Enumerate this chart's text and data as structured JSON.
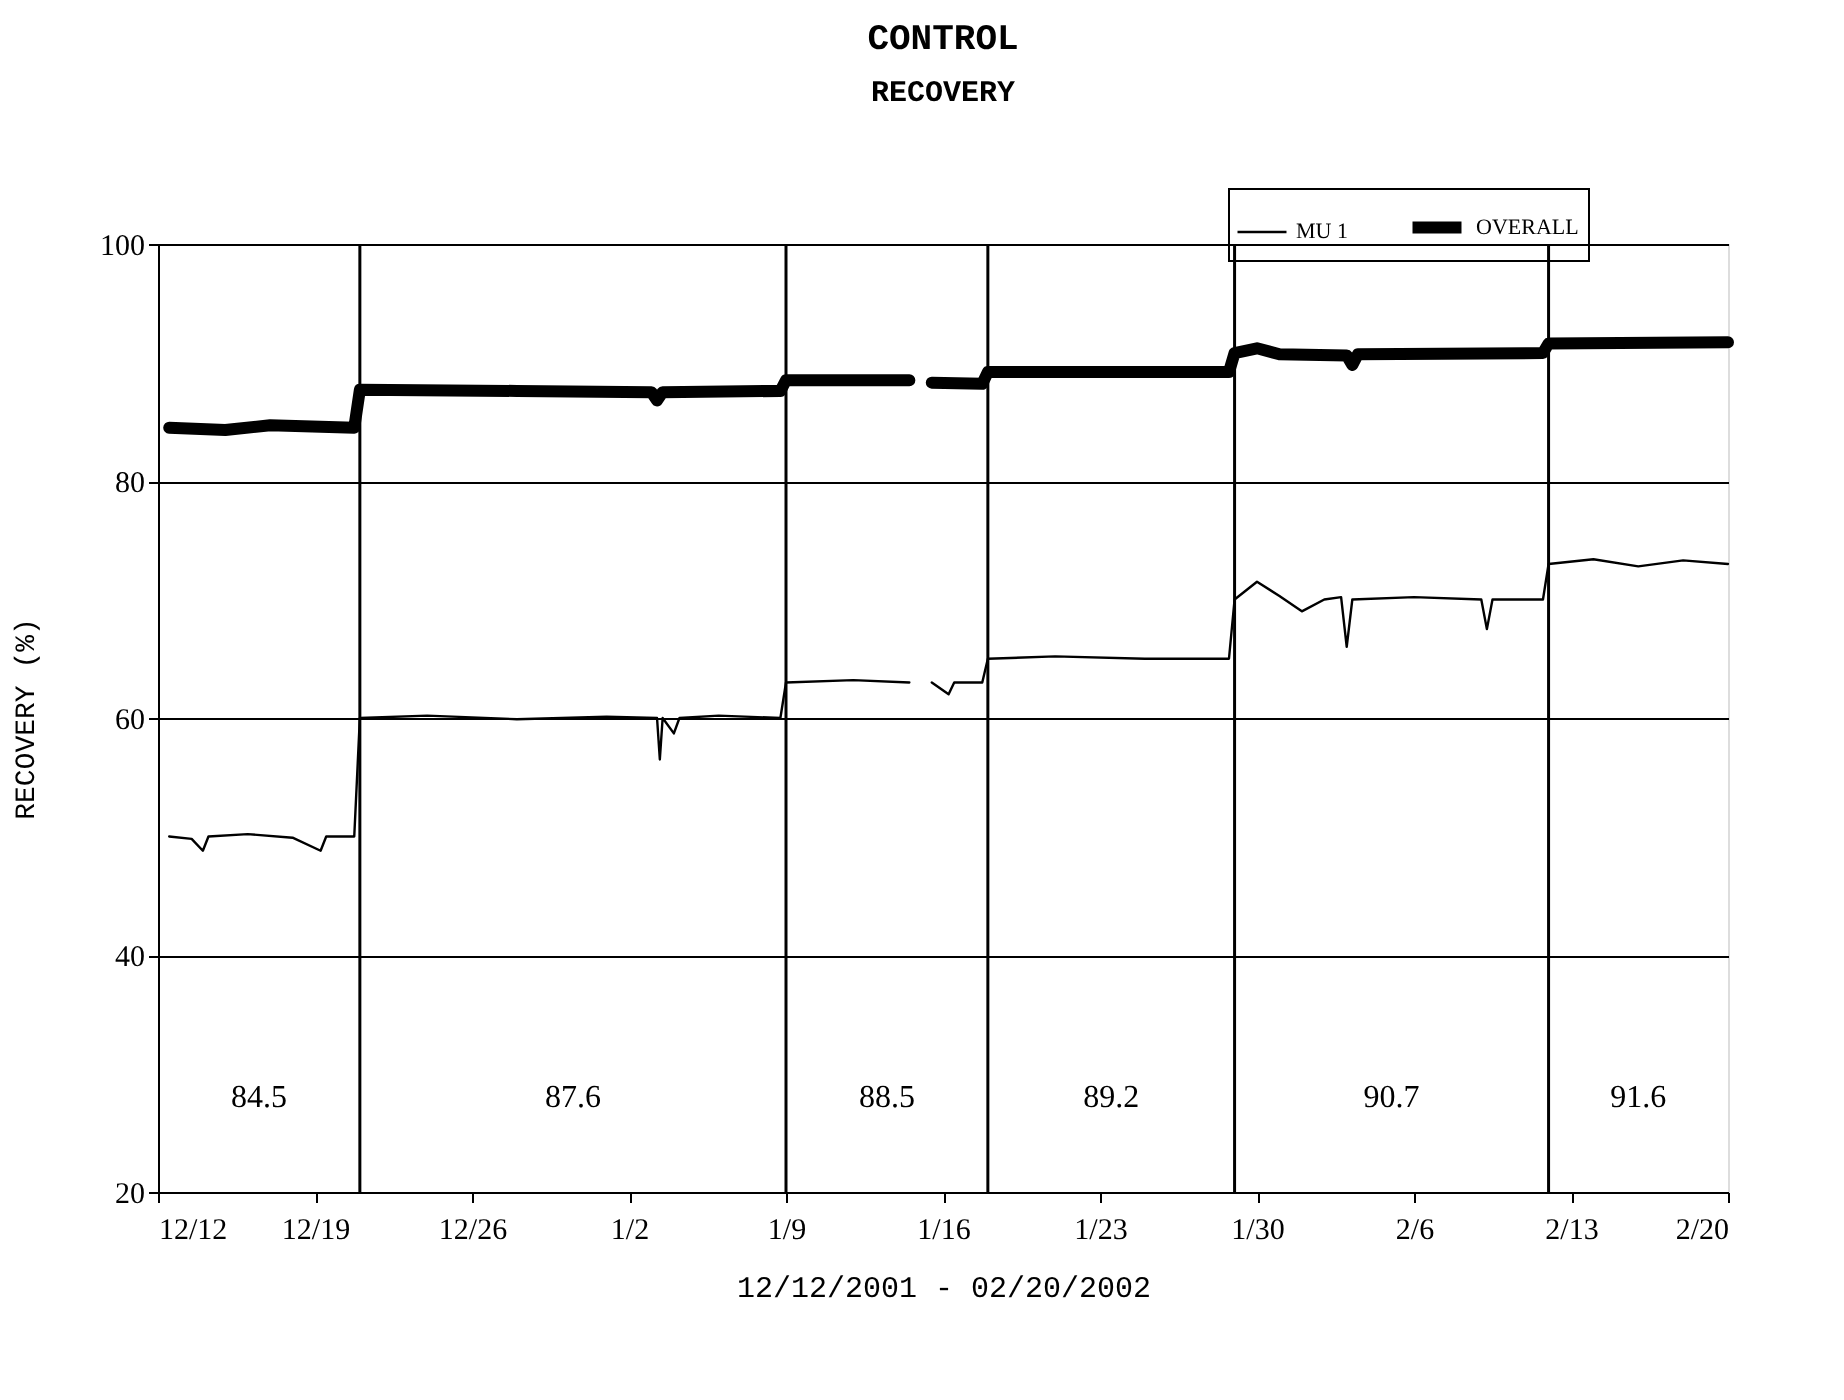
{
  "chart_data": {
    "type": "line",
    "title": "CONTROL",
    "subtitle": "RECOVERY",
    "xlabel": "12/12/2001 - 02/20/2002",
    "ylabel": "RECOVERY (%)",
    "xlim": [
      "2001-12-12",
      "2002-02-20"
    ],
    "xticks": [
      {
        "value": "2001-12-12",
        "label": "12/12"
      },
      {
        "value": "2001-12-19",
        "label": "12/19"
      },
      {
        "value": "2001-12-26",
        "label": "12/26"
      },
      {
        "value": "2002-01-02",
        "label": "1/2"
      },
      {
        "value": "2002-01-09",
        "label": "1/9"
      },
      {
        "value": "2002-01-16",
        "label": "1/16"
      },
      {
        "value": "2002-01-23",
        "label": "1/23"
      },
      {
        "value": "2002-01-30",
        "label": "1/30"
      },
      {
        "value": "2002-02-06",
        "label": "2/6"
      },
      {
        "value": "2002-02-13",
        "label": "2/13"
      },
      {
        "value": "2002-02-20",
        "label": "2/20"
      }
    ],
    "ylim": [
      20,
      100
    ],
    "yticks": [
      20,
      40,
      60,
      80,
      100
    ],
    "grid": "y",
    "legend": "top right",
    "marker": "none",
    "line_style": "solid",
    "ref_lines": [
      {
        "axis": "x",
        "value": "2001-12-21",
        "color": "#000000"
      },
      {
        "axis": "x",
        "value": "2002-01-09",
        "color": "#000000"
      },
      {
        "axis": "x",
        "value": "2002-01-18",
        "color": "#000000"
      },
      {
        "axis": "x",
        "value": "2002-01-29",
        "color": "#000000"
      },
      {
        "axis": "x",
        "value": "2002-02-12",
        "color": "#000000"
      }
    ],
    "annotations": [
      "84.5",
      "87.6",
      "88.5",
      "89.2",
      "90.7",
      "91.6"
    ],
    "series": [
      {
        "name": "MU 1",
        "color": "#000000",
        "x": [
          "2001-12-12T12:00",
          "2001-12-13T12:00",
          "2001-12-14T00:00",
          "2001-12-14T06:00",
          "2001-12-16T00:00",
          "2001-12-18T00:00",
          "2001-12-19T06:00",
          "2001-12-19T12:00",
          "2001-12-20T18:00",
          "2001-12-21T00:00",
          "2001-12-24T00:00",
          "2001-12-28T00:00",
          "2002-01-01T00:00",
          "2002-01-03T06:00",
          "2002-01-03T09:00",
          "2002-01-03T12:00",
          "2002-01-04T00:00",
          "2002-01-04T06:00",
          "2002-01-06T00:00",
          "2002-01-08T18:00",
          "2002-01-09T00:00",
          "2002-01-12T00:00",
          "2002-01-14T12:00",
          "2002-01-15T00:00",
          "2002-01-15T12:00",
          "2002-01-16T06:00",
          "2002-01-16T12:00",
          "2002-01-17T18:00",
          "2002-01-18T00:00",
          "2002-01-21T00:00",
          "2002-01-25T00:00",
          "2002-01-28T18:00",
          "2002-01-29T00:00",
          "2002-01-30T00:00",
          "2002-01-31T00:00",
          "2002-02-01T00:00",
          "2002-02-02T00:00",
          "2002-02-02T18:00",
          "2002-02-03T00:00",
          "2002-02-03T06:00",
          "2002-02-06T00:00",
          "2002-02-09T00:00",
          "2002-02-09T06:00",
          "2002-02-09T12:00",
          "2002-02-11T18:00",
          "2002-02-12T00:00",
          "2002-02-14T00:00",
          "2002-02-16T00:00",
          "2002-02-18T00:00",
          "2002-02-20T00:00"
        ],
        "values": [
          50,
          49.8,
          48.8,
          50,
          50.2,
          49.9,
          48.8,
          50,
          50,
          60,
          60.2,
          59.9,
          60.1,
          60,
          56.5,
          60,
          58.7,
          60,
          60.2,
          60,
          63,
          63.2,
          63,
          null,
          63,
          62,
          63,
          63,
          65,
          65.2,
          65,
          65,
          70,
          71.5,
          70.3,
          69,
          70,
          70.2,
          66,
          70,
          70.2,
          70,
          67.5,
          70,
          70,
          73,
          73.4,
          72.8,
          73.3,
          73
        ]
      },
      {
        "name": "OVERALL",
        "color": "#000000",
        "x": [
          "2001-12-12T12:00",
          "2001-12-15T00:00",
          "2001-12-17T00:00",
          "2001-12-20T18:00",
          "2001-12-21T00:00",
          "2001-12-28T00:00",
          "2002-01-03T00:00",
          "2002-01-03T06:00",
          "2002-01-03T12:00",
          "2002-01-08T18:00",
          "2002-01-09T00:00",
          "2002-01-14T12:00",
          "2002-01-15T00:00",
          "2002-01-15T12:00",
          "2002-01-17T18:00",
          "2002-01-18T00:00",
          "2002-01-28T18:00",
          "2002-01-29T00:00",
          "2002-01-30T00:00",
          "2002-01-31T00:00",
          "2002-02-03T00:00",
          "2002-02-03T06:00",
          "2002-02-03T12:00",
          "2002-02-11T18:00",
          "2002-02-12T00:00",
          "2002-02-20T00:00"
        ],
        "values": [
          84.5,
          84.3,
          84.7,
          84.5,
          87.7,
          87.6,
          87.5,
          86.8,
          87.5,
          87.6,
          88.5,
          88.5,
          null,
          88.3,
          88.2,
          89.2,
          89.2,
          90.8,
          91.2,
          90.7,
          90.6,
          89.8,
          90.7,
          90.8,
          91.6,
          91.7
        ]
      }
    ]
  }
}
